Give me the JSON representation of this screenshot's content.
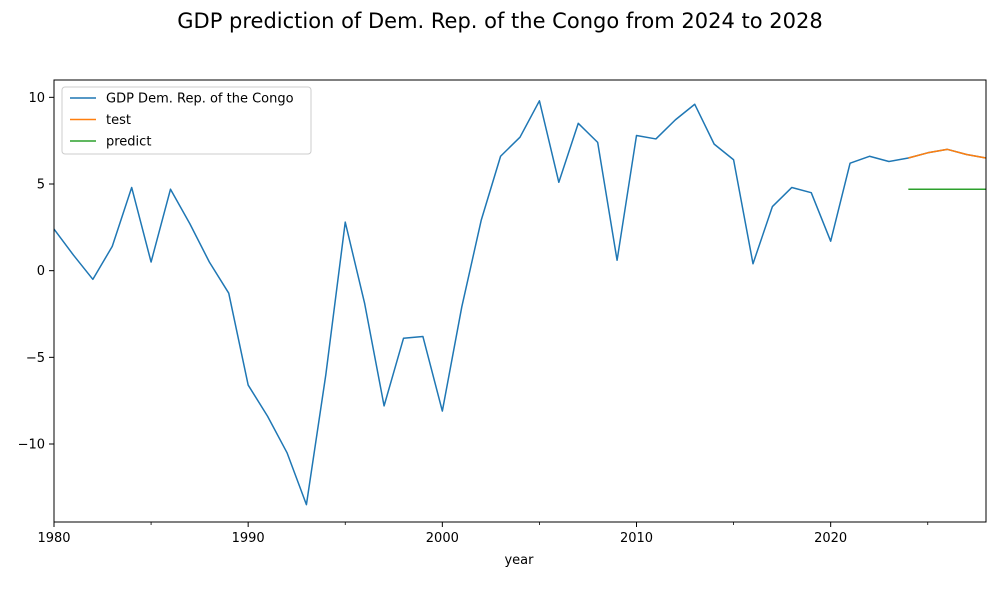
{
  "chart_data": {
    "type": "line",
    "title": "GDP prediction of Dem. Rep. of the Congo from 2024 to 2028",
    "xlabel": "year",
    "ylabel": "",
    "xlim": [
      1980,
      2028
    ],
    "ylim": [
      -14.5,
      11
    ],
    "xticks": [
      1980,
      1990,
      2000,
      2010,
      2020
    ],
    "xtick_labels": [
      "1980",
      "1990",
      "2000",
      "2010",
      "2020"
    ],
    "x_minor_ticks": [
      1985,
      1995,
      2005,
      2015,
      2025
    ],
    "yticks": [
      -10,
      -5,
      0,
      5,
      10
    ],
    "ytick_labels": [
      "−10",
      "−5",
      "0",
      "5",
      "10"
    ],
    "grid": false,
    "legend_position": "top-left",
    "series": [
      {
        "name": "GDP Dem. Rep. of the Congo",
        "color": "#1f77b4",
        "x": [
          1980,
          1981,
          1982,
          1983,
          1984,
          1985,
          1986,
          1987,
          1988,
          1989,
          1990,
          1991,
          1992,
          1993,
          1994,
          1995,
          1996,
          1997,
          1998,
          1999,
          2000,
          2001,
          2002,
          2003,
          2004,
          2005,
          2006,
          2007,
          2008,
          2009,
          2010,
          2011,
          2012,
          2013,
          2014,
          2015,
          2016,
          2017,
          2018,
          2019,
          2020,
          2021,
          2022,
          2023,
          2024,
          2025,
          2026,
          2027,
          2028
        ],
        "values": [
          2.4,
          0.9,
          -0.5,
          1.4,
          4.8,
          0.5,
          4.7,
          2.7,
          0.5,
          -1.3,
          -6.6,
          -8.4,
          -10.5,
          -13.5,
          -6.0,
          2.8,
          -1.9,
          -7.8,
          -3.9,
          -3.8,
          -8.1,
          -2.1,
          2.9,
          6.6,
          7.7,
          9.8,
          5.1,
          8.5,
          7.4,
          0.6,
          7.8,
          7.6,
          8.7,
          9.6,
          7.3,
          6.4,
          0.4,
          3.7,
          4.8,
          4.5,
          1.7,
          6.2,
          6.6,
          6.3,
          6.5,
          6.8,
          7.0,
          6.7,
          6.5
        ]
      },
      {
        "name": "test",
        "color": "#ff7f0e",
        "x": [
          2024,
          2025,
          2026,
          2027,
          2028
        ],
        "values": [
          6.5,
          6.8,
          7.0,
          6.7,
          6.5
        ]
      },
      {
        "name": "predict",
        "color": "#2ca02c",
        "x": [
          2024,
          2025,
          2026,
          2027,
          2028
        ],
        "values": [
          4.7,
          4.7,
          4.7,
          4.7,
          4.7
        ]
      }
    ]
  }
}
